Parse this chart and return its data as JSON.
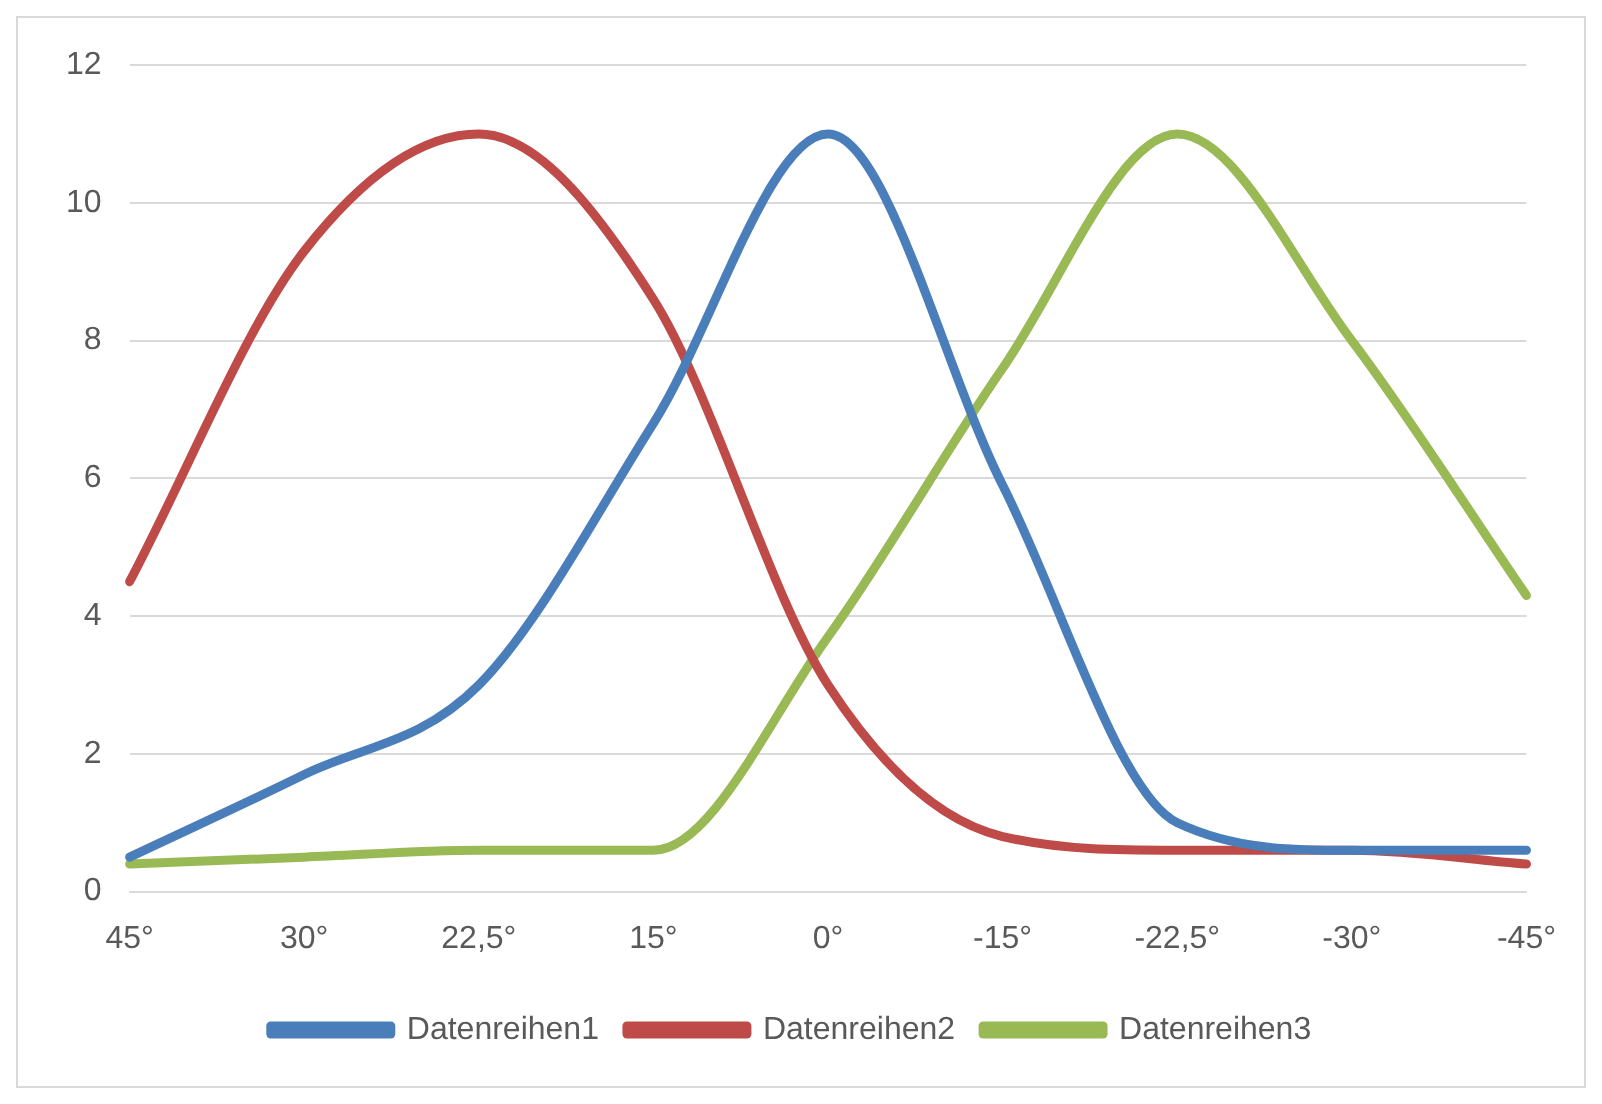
{
  "chart_data": {
    "type": "line",
    "categories": [
      "45°",
      "30°",
      "22,5°",
      "15°",
      "0°",
      "-15°",
      "-22,5°",
      "-30°",
      "-45°"
    ],
    "series": [
      {
        "name": "Datenreihen1",
        "color": "#4a7ebb",
        "values": [
          0.5,
          1.7,
          3.0,
          6.8,
          11,
          5.9,
          1.0,
          0.6,
          0.6
        ]
      },
      {
        "name": "Datenreihen2",
        "color": "#be4b48",
        "values": [
          4.5,
          9.3,
          11,
          8.6,
          3.0,
          0.8,
          0.6,
          0.6,
          0.4
        ]
      },
      {
        "name": "Datenreihen3",
        "color": "#98b954",
        "values": [
          0.4,
          0.5,
          0.6,
          0.6,
          3.7,
          7.6,
          11,
          8.0,
          4.3
        ]
      }
    ],
    "ylim": [
      0,
      12
    ],
    "yticks": [
      0,
      2,
      4,
      6,
      8,
      10,
      12
    ],
    "grid": "y",
    "legend": "bottom",
    "marker": "none",
    "line_style": "solid"
  }
}
